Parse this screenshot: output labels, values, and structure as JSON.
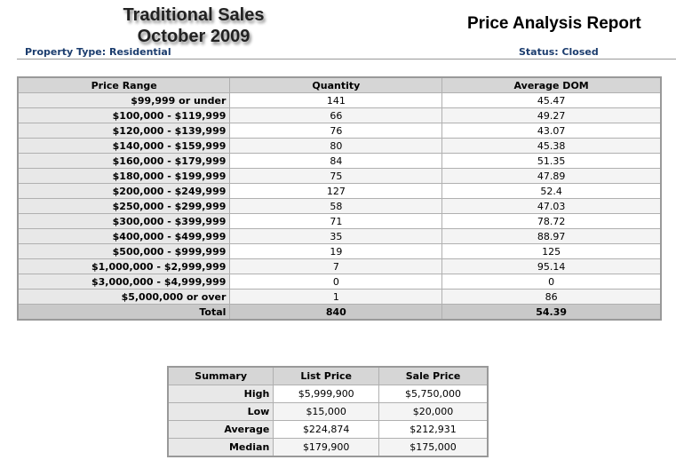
{
  "header": {
    "title_line1": "Traditional Sales",
    "title_line2": "October 2009",
    "report_title": "Price Analysis Report",
    "property_type": "Property Type: Residential",
    "status": "Status: Closed"
  },
  "table": {
    "columns": [
      "Price Range",
      "Quantity",
      "Average DOM"
    ],
    "rows": [
      [
        "$99,999 or under",
        "141",
        "45.47"
      ],
      [
        "$100,000 - $119,999",
        "66",
        "49.27"
      ],
      [
        "$120,000 - $139,999",
        "76",
        "43.07"
      ],
      [
        "$140,000 - $159,999",
        "80",
        "45.38"
      ],
      [
        "$160,000 - $179,999",
        "84",
        "51.35"
      ],
      [
        "$180,000 - $199,999",
        "75",
        "47.89"
      ],
      [
        "$200,000 - $249,999",
        "127",
        "52.4"
      ],
      [
        "$250,000 - $299,999",
        "58",
        "47.03"
      ],
      [
        "$300,000 - $399,999",
        "71",
        "78.72"
      ],
      [
        "$400,000 - $499,999",
        "35",
        "88.97"
      ],
      [
        "$500,000 - $999,999",
        "19",
        "125"
      ],
      [
        "$1,000,000 - $2,999,999",
        "7",
        "95.14"
      ],
      [
        "$3,000,000 - $4,999,999",
        "0",
        "0"
      ],
      [
        "$5,000,000 or over",
        "1",
        "86"
      ]
    ],
    "total": [
      "Total",
      "840",
      "54.39"
    ]
  },
  "summary": {
    "columns": [
      "Summary",
      "List Price",
      "Sale Price"
    ],
    "rows": [
      [
        "High",
        "$5,999,900",
        "$5,750,000"
      ],
      [
        "Low",
        "$15,000",
        "$20,000"
      ],
      [
        "Average",
        "$224,874",
        "$212,931"
      ],
      [
        "Median",
        "$179,900",
        "$175,000"
      ]
    ]
  }
}
